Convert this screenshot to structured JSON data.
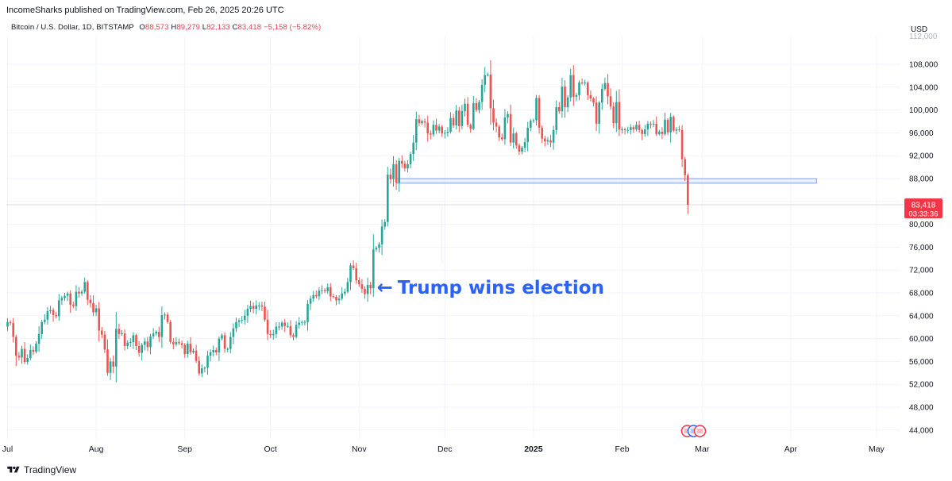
{
  "header": {
    "published_text": "IncomeSharks published on TradingView.com, Feb 26, 2025 20:26 UTC"
  },
  "symbol": {
    "name": "Bitcoin / U.S. Dollar, 1D, BITSTAMP",
    "open_label": "O",
    "open": "88,573",
    "high_label": "H",
    "high": "89,279",
    "low_label": "L",
    "low": "82,133",
    "close_label": "C",
    "close": "83,418",
    "change": "−5,158 (−5.82%)"
  },
  "currency": "USD",
  "annotation": {
    "text": "Trump wins election",
    "arrow": "←"
  },
  "price_label": {
    "price": "83,418",
    "countdown": "03:33:36"
  },
  "footer": {
    "brand": "TradingView",
    "logo_icon": "tradingview-logo-icon"
  },
  "colors": {
    "up": "#26a69a",
    "down": "#ef5350",
    "annotation": "#2962ff",
    "price_badge": "#f23645",
    "zone_fill": "#dbe6ff",
    "zone_stroke": "#7e9ef0"
  },
  "chart_data": {
    "type": "candlestick",
    "title": "Bitcoin / U.S. Dollar, 1D, BITSTAMP",
    "ylim": [
      42000,
      112000
    ],
    "y_ticks": [
      44000,
      48000,
      52000,
      56000,
      60000,
      64000,
      68000,
      72000,
      76000,
      80000,
      84000,
      88000,
      92000,
      96000,
      100000,
      104000,
      108000
    ],
    "y_tick_labels": [
      "44,000",
      "48,000",
      "52,000",
      "56,000",
      "60,000",
      "64,000",
      "68,000",
      "72,000",
      "76,000",
      "80,000",
      "84,000",
      "88,000",
      "92,000",
      "96,000",
      "100,000",
      "104,000",
      "108,000"
    ],
    "x_labels": [
      {
        "label": "Jul",
        "date": "2024-07-01"
      },
      {
        "label": "Aug",
        "date": "2024-08-01"
      },
      {
        "label": "Sep",
        "date": "2024-09-01"
      },
      {
        "label": "Oct",
        "date": "2024-10-01"
      },
      {
        "label": "Nov",
        "date": "2024-11-01"
      },
      {
        "label": "Dec",
        "date": "2024-12-01"
      },
      {
        "label": "2025",
        "date": "2025-01-01"
      },
      {
        "label": "Feb",
        "date": "2025-02-01"
      },
      {
        "label": "Mar",
        "date": "2025-03-01"
      },
      {
        "label": "Apr",
        "date": "2025-04-01"
      },
      {
        "label": "May",
        "date": "2025-05-01"
      }
    ],
    "start_date": "2024-07-01",
    "last_close": 83418,
    "support_zone": {
      "low": 87200,
      "high": 88000,
      "start": "2024-11-14",
      "end": "2025-04-10"
    },
    "annotation_point": {
      "date": "2024-11-05",
      "price": 69000
    },
    "closes": [
      62900,
      62700,
      60300,
      57000,
      56700,
      58200,
      55900,
      56600,
      58000,
      57700,
      59100,
      60800,
      62900,
      63300,
      64800,
      65000,
      64100,
      63900,
      66700,
      67100,
      67500,
      67900,
      65900,
      65700,
      68200,
      67900,
      68200,
      69900,
      66800,
      66200,
      64600,
      65300,
      61400,
      60700,
      58100,
      54000,
      56000,
      55100,
      61700,
      60800,
      60900,
      58700,
      59300,
      59400,
      60600,
      58700,
      57500,
      58900,
      59500,
      58500,
      60400,
      60900,
      61200,
      60300,
      64100,
      64200,
      62900,
      59400,
      59000,
      59400,
      59200,
      58900,
      57300,
      59100,
      57600,
      57900,
      56100,
      53900,
      54800,
      54900,
      57000,
      57600,
      58000,
      57600,
      60000,
      60600,
      58200,
      58200,
      60300,
      61800,
      62900,
      63200,
      63300,
      64000,
      65200,
      65700,
      65200,
      65800,
      65800,
      65600,
      63300,
      60800,
      60600,
      60800,
      62100,
      62100,
      62800,
      62200,
      62200,
      60600,
      60300,
      62400,
      62800,
      62900,
      62900,
      66100,
      67000,
      67600,
      67400,
      68400,
      68500,
      68300,
      69000,
      67400,
      67300,
      66700,
      67000,
      67900,
      68200,
      69900,
      72800,
      72300,
      70200,
      69500,
      68700,
      67800,
      69400,
      68800,
      75600,
      75900,
      76500,
      79600,
      80400,
      88700,
      87900,
      90500,
      87300,
      91100,
      90600,
      89800,
      90500,
      92300,
      94300,
      98400,
      97700,
      98000,
      97800,
      95900,
      95700,
      97400,
      96400,
      97100,
      95900,
      96000,
      96200,
      98600,
      97300,
      99900,
      97200,
      99800,
      101100,
      97400,
      96700,
      101200,
      100000,
      101400,
      104400,
      106100,
      106200,
      100300,
      97800,
      97100,
      95200,
      94900,
      98700,
      99300,
      94300,
      95900,
      93800,
      92700,
      93400,
      94400,
      96900,
      98100,
      98200,
      102100,
      96900,
      95000,
      94500,
      94700,
      94300,
      96500,
      100500,
      99800,
      104100,
      100500,
      102200,
      106100,
      102300,
      102600,
      104800,
      104700,
      104800,
      102600,
      102000,
      101300,
      97600,
      101300,
      103700,
      104700,
      102400,
      100600,
      97700,
      101400,
      96600,
      96600,
      96500,
      96500,
      97000,
      96600,
      97400,
      96500,
      95800,
      96600,
      97600,
      97500,
      97600,
      95800,
      96200,
      95800,
      98300,
      96100,
      98800,
      96400,
      96600,
      96500,
      91400,
      88600,
      83418
    ]
  }
}
